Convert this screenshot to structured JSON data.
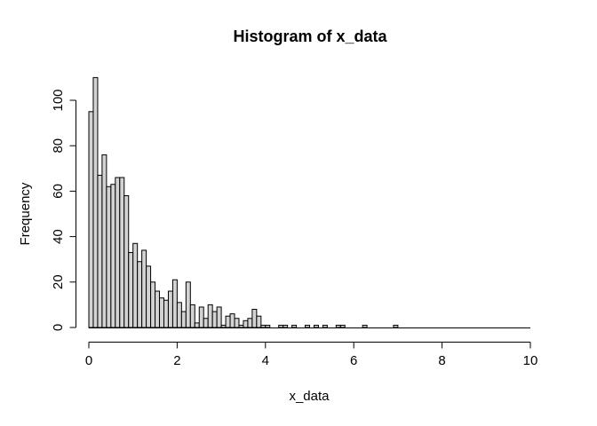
{
  "title": "Histogram of x_data",
  "xlabel": "x_data",
  "ylabel": "Frequency",
  "chart_data": {
    "type": "bar",
    "subtype": "histogram",
    "title": "Histogram of x_data",
    "xlabel": "x_data",
    "ylabel": "Frequency",
    "bin_start": 0,
    "bin_width": 0.1,
    "counts": [
      95,
      110,
      67,
      76,
      62,
      63,
      66,
      66,
      58,
      33,
      37,
      29,
      34,
      27,
      20,
      16,
      13,
      12,
      16,
      21,
      11,
      7,
      20,
      10,
      2,
      9,
      4,
      10,
      7,
      9,
      1,
      5,
      6,
      4,
      1,
      3,
      4,
      8,
      5,
      1,
      1,
      0,
      0,
      1,
      1,
      0,
      1,
      0,
      0,
      1,
      0,
      1,
      0,
      1,
      0,
      0,
      1,
      1,
      0,
      0,
      0,
      0,
      1,
      0,
      0,
      0,
      0,
      0,
      0,
      1,
      0,
      0,
      0,
      0,
      0,
      0,
      0,
      0,
      0,
      0,
      0,
      0,
      0,
      0,
      0,
      0,
      0,
      0,
      0,
      0,
      0,
      0,
      0,
      0,
      0,
      0,
      0,
      0,
      0,
      0
    ],
    "xlim": [
      0,
      10
    ],
    "ylim": [
      0,
      110
    ],
    "x_ticks": [
      0,
      2,
      4,
      6,
      8,
      10
    ],
    "y_ticks": [
      0,
      20,
      40,
      60,
      80,
      100
    ],
    "grid": "off",
    "legend": "none",
    "bar_fill": "#d3d3d3",
    "bar_stroke": "#000000",
    "axis_color": "#000000"
  }
}
